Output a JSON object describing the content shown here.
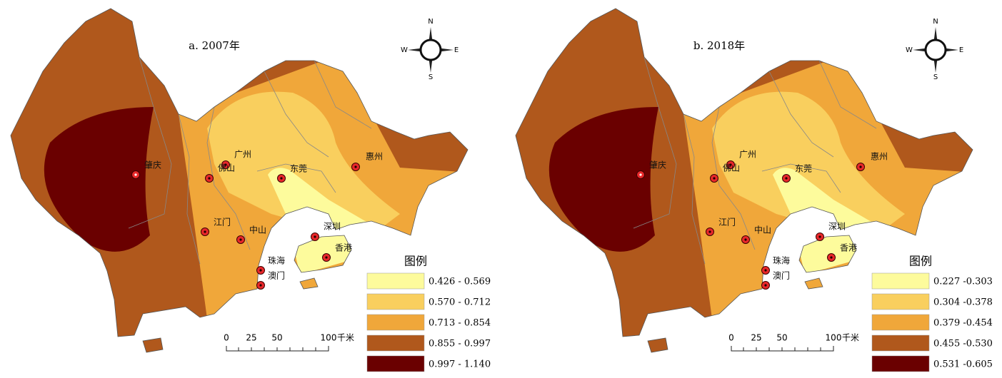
{
  "panels": [
    {
      "title": "a. 2007年",
      "compass": {
        "n": "N",
        "s": "S",
        "e": "E",
        "w": "W"
      },
      "cities": [
        "肇庆",
        "广州",
        "佛山",
        "东莞",
        "惠州",
        "江门",
        "中山",
        "深圳",
        "香港",
        "珠海",
        "澳门"
      ],
      "scale": {
        "ticks": [
          "0",
          "25",
          "50",
          "100"
        ],
        "unit": "千米"
      },
      "legend": {
        "title": "图例",
        "items": [
          {
            "label": "0.426 - 0.569",
            "color": "#fdfb9c"
          },
          {
            "label": "0.570 - 0.712",
            "color": "#f9cf5e"
          },
          {
            "label": "0.713 - 0.854",
            "color": "#f0a73a"
          },
          {
            "label": "0.855 - 0.997",
            "color": "#b0581c"
          },
          {
            "label": "0.997 - 1.140",
            "color": "#6a0000"
          }
        ]
      }
    },
    {
      "title": "b. 2018年",
      "compass": {
        "n": "N",
        "s": "S",
        "e": "E",
        "w": "W"
      },
      "cities": [
        "肇庆",
        "广州",
        "佛山",
        "东莞",
        "惠州",
        "江门",
        "中山",
        "深圳",
        "香港",
        "珠海",
        "澳门"
      ],
      "scale": {
        "ticks": [
          "0",
          "25",
          "50",
          "100"
        ],
        "unit": "千米"
      },
      "legend": {
        "title": "图例",
        "items": [
          {
            "label": "0.227 -0.303",
            "color": "#fdfb9c"
          },
          {
            "label": "0.304 -0.378",
            "color": "#f9cf5e"
          },
          {
            "label": "0.379 -0.454",
            "color": "#f0a73a"
          },
          {
            "label": "0.455 -0.530",
            "color": "#b0581c"
          },
          {
            "label": "0.531 -0.605",
            "color": "#6a0000"
          }
        ]
      }
    }
  ]
}
